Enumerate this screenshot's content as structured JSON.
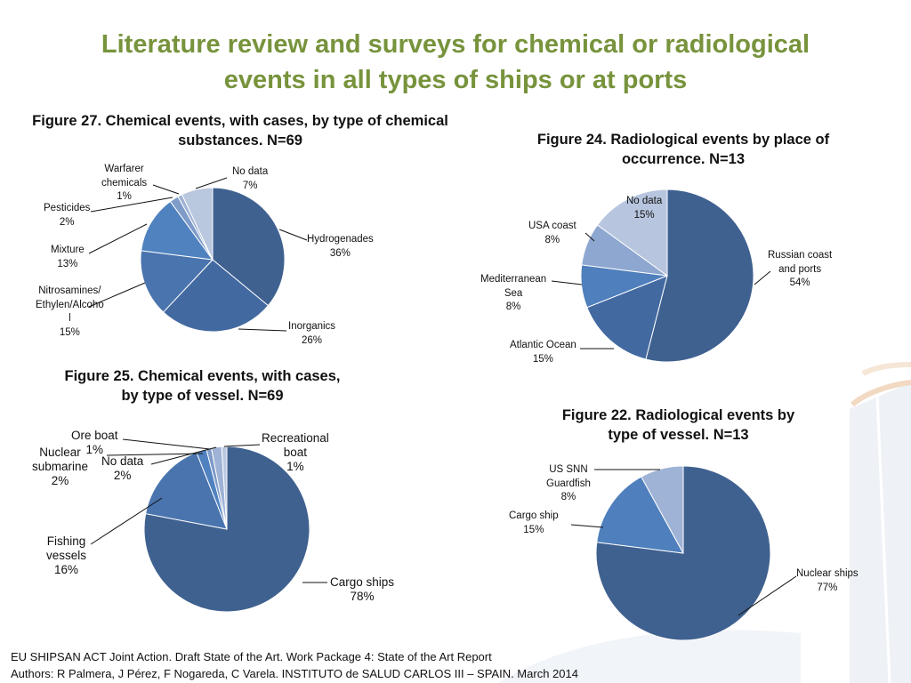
{
  "slide": {
    "title_line1": "Literature review and surveys for chemical or radiological",
    "title_line2": "events in all types of ships or at ports",
    "footer_line1": "EU SHIPSAN ACT Joint Action. Draft State of the Art. Work Package 4: State of the Art Report",
    "footer_line2": "Authors: R Palmera, J Pérez, F Nogareda, C Varela. INSTITUTO de SALUD CARLOS III – SPAIN. March 2014"
  },
  "colors": {
    "title": "#77933c",
    "dark_blue": "#3f6190",
    "mid_blue": "#4a7ab8",
    "light_blue": "#8ea9d1",
    "pale_blue": "#b7c6df"
  },
  "figures": {
    "fig27": {
      "title_line1": "Figure 27. Chemical events, with cases, by type of chemical",
      "title_line2": "substances. N=69",
      "labels": {
        "hydrogenades": [
          "Hydrogenades",
          "36%"
        ],
        "inorganics": [
          "Inorganics",
          "26%"
        ],
        "nitrosamines": [
          "Nitrosamines/",
          "Ethylen/Alcoho",
          "l",
          "15%"
        ],
        "mixture": [
          "Mixture",
          "13%"
        ],
        "pesticides": [
          "Pesticides",
          "2%"
        ],
        "warfarer": [
          "Warfarer",
          "chemicals",
          "1%"
        ],
        "nodata": [
          "No data",
          "7%"
        ]
      }
    },
    "fig24": {
      "title_line1": "Figure 24. Radiological events by place of",
      "title_line2": "occurrence. N=13",
      "labels": {
        "russian": [
          "Russian coast",
          "and ports",
          "54%"
        ],
        "atlantic": [
          "Atlantic Ocean",
          "15%"
        ],
        "mediterranean": [
          "Mediterranean",
          "Sea",
          "8%"
        ],
        "usa": [
          "USA coast",
          "8%"
        ],
        "nodata": [
          "No data",
          "15%"
        ]
      }
    },
    "fig25": {
      "title_line1": "Figure 25. Chemical events, with cases,",
      "title_line2": "by type of vessel. N=69",
      "labels": {
        "cargo": [
          "Cargo ships",
          "78%"
        ],
        "fishing": [
          "Fishing",
          "vessels",
          "16%"
        ],
        "nuclear": [
          "Nuclear",
          "submarine",
          "2%"
        ],
        "ore": [
          "Ore boat",
          "1%"
        ],
        "nodata": [
          "No data",
          "2%"
        ],
        "recreational": [
          "Recreational",
          "boat",
          "1%"
        ]
      }
    },
    "fig22": {
      "title_line1": "Figure 22. Radiological events by",
      "title_line2": "type of vessel. N=13",
      "labels": {
        "nuclear": [
          "Nuclear ships",
          "77%"
        ],
        "cargo": [
          "Cargo ship",
          "15%"
        ],
        "guardfish": [
          "US SNN",
          "Guardfish",
          "8%"
        ]
      }
    }
  },
  "chart_data": [
    {
      "id": "fig27",
      "type": "pie",
      "title": "Figure 27. Chemical events, with cases, by type of chemical substances. N=69",
      "slices": [
        {
          "label": "Hydrogenades",
          "value": 36,
          "color": "#3f6190"
        },
        {
          "label": "Inorganics",
          "value": 26,
          "color": "#4369a1"
        },
        {
          "label": "Nitrosamines/Ethylen/Alcohol",
          "value": 15,
          "color": "#4a74ae"
        },
        {
          "label": "Mixture",
          "value": 13,
          "color": "#5082c0"
        },
        {
          "label": "Pesticides",
          "value": 2,
          "color": "#7f9bc8"
        },
        {
          "label": "Warfarer chemicals",
          "value": 1,
          "color": "#9fb3d6"
        },
        {
          "label": "No data",
          "value": 7,
          "color": "#b9c7df"
        }
      ]
    },
    {
      "id": "fig24",
      "type": "pie",
      "title": "Figure 24. Radiological events by place of occurrence. N=13",
      "slices": [
        {
          "label": "Russian coast and ports",
          "value": 54,
          "color": "#3f6190"
        },
        {
          "label": "Atlantic Ocean",
          "value": 15,
          "color": "#4369a1"
        },
        {
          "label": "Mediterranean Sea",
          "value": 8,
          "color": "#4f7fbc"
        },
        {
          "label": "USA coast",
          "value": 8,
          "color": "#8ea7d0"
        },
        {
          "label": "No data",
          "value": 15,
          "color": "#b7c5de"
        }
      ]
    },
    {
      "id": "fig25",
      "type": "pie",
      "title": "Figure 25. Chemical events, with cases, by type of vessel. N=69",
      "slices": [
        {
          "label": "Cargo ships",
          "value": 78,
          "color": "#3f6190"
        },
        {
          "label": "Fishing vessels",
          "value": 16,
          "color": "#4a74ae"
        },
        {
          "label": "Nuclear submarine",
          "value": 2,
          "color": "#5082c0"
        },
        {
          "label": "Ore boat",
          "value": 1,
          "color": "#7f9bc8"
        },
        {
          "label": "No data",
          "value": 2,
          "color": "#9fb3d6"
        },
        {
          "label": "Recreational boat",
          "value": 1,
          "color": "#b9c7df"
        }
      ]
    },
    {
      "id": "fig22",
      "type": "pie",
      "title": "Figure 22. Radiological events by type of vessel. N=13",
      "slices": [
        {
          "label": "Nuclear ships",
          "value": 77,
          "color": "#3f6190"
        },
        {
          "label": "Cargo ship",
          "value": 15,
          "color": "#4f7fbc"
        },
        {
          "label": "US SNN Guardfish",
          "value": 8,
          "color": "#9fb3d6"
        }
      ]
    }
  ]
}
